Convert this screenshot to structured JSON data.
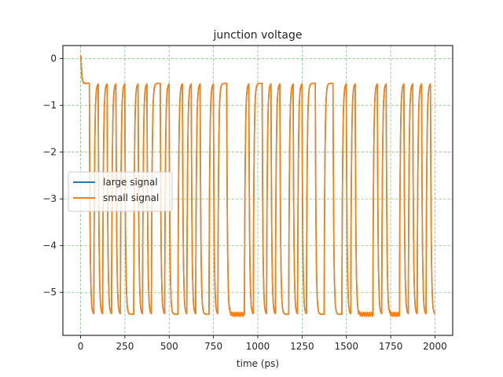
{
  "chart_data": {
    "type": "line",
    "title": "junction voltage",
    "xlabel": "time (ps)",
    "ylabel": "",
    "xlim": [
      -100,
      2100
    ],
    "ylim": [
      -5.92,
      0.28
    ],
    "xticks": [
      0,
      250,
      500,
      750,
      1000,
      1250,
      1500,
      1750,
      2000
    ],
    "yticks": [
      0,
      -1,
      -2,
      -3,
      -4,
      -5
    ],
    "grid": true,
    "legend_position": "center-left",
    "bit_period_ps": 25,
    "high_level": -0.53,
    "low_level": -5.47,
    "bits": [
      1,
      1,
      0,
      1,
      0,
      1,
      0,
      1,
      0,
      1,
      0,
      0,
      1,
      0,
      1,
      0,
      1,
      1,
      0,
      1,
      0,
      0,
      1,
      0,
      1,
      0,
      1,
      0,
      0,
      1,
      0,
      1,
      1,
      0,
      0,
      0,
      0,
      1,
      0,
      1,
      1,
      0,
      1,
      0,
      1,
      0,
      0,
      1,
      0,
      1,
      0,
      1,
      1,
      0,
      0,
      1,
      1,
      0,
      0,
      1,
      0,
      1,
      0,
      0,
      0,
      0,
      1,
      0,
      1,
      0,
      0,
      0,
      1,
      0,
      1,
      0,
      1,
      0,
      1,
      0,
      0,
      1,
      1,
      0
    ],
    "series": [
      {
        "name": "large signal",
        "color": "#1f77b4"
      },
      {
        "name": "small signal",
        "color": "#ff7f0e"
      }
    ]
  }
}
